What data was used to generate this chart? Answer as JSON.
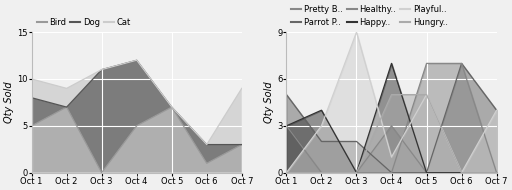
{
  "x": [
    1,
    2,
    3,
    4,
    5,
    6,
    7
  ],
  "x_ticks_major": [
    1,
    3,
    5,
    7
  ],
  "x_ticks_minor": [
    2,
    4,
    6
  ],
  "major_labels": [
    "Oct 1",
    "Oct 3",
    "Oct 5",
    "Oct 7"
  ],
  "minor_labels": [
    "Oct 2",
    "Oct 4",
    "Oct 6"
  ],
  "left": {
    "Bird": [
      5,
      7,
      0,
      5,
      7,
      1,
      3
    ],
    "Dog": [
      3,
      0,
      11,
      7,
      0,
      2,
      0
    ],
    "Cat": [
      2,
      2,
      0,
      0,
      0,
      0,
      6
    ],
    "colors": {
      "Bird": "#999999",
      "Dog": "#555555",
      "Cat": "#cccccc"
    },
    "order": [
      "Bird",
      "Dog",
      "Cat"
    ],
    "ylabel": "Qty Sold",
    "ylim": [
      0,
      15
    ],
    "yticks": [
      0,
      5,
      10,
      15
    ]
  },
  "right": {
    "Pretty B..": [
      3,
      0,
      0,
      3,
      0,
      0,
      0
    ],
    "Parrot P..": [
      5,
      2,
      2,
      0,
      0,
      7,
      4
    ],
    "Healthy..": [
      0,
      0,
      0,
      0,
      7,
      7,
      0
    ],
    "Happy..": [
      3,
      4,
      0,
      7,
      0,
      0,
      0
    ],
    "Playful..": [
      0,
      3,
      9,
      1,
      5,
      0,
      4
    ],
    "Hungry..": [
      0,
      0,
      0,
      5,
      5,
      0,
      0
    ],
    "colors": {
      "Pretty B..": "#888888",
      "Parrot P..": "#666666",
      "Healthy..": "#888888",
      "Happy..": "#333333",
      "Playful..": "#d0d0d0",
      "Hungry..": "#aaaaaa"
    },
    "order": [
      "Pretty B..",
      "Parrot P..",
      "Healthy..",
      "Happy..",
      "Playful..",
      "Hungry.."
    ],
    "ylabel": "Qty Sold",
    "ylim": [
      0,
      9
    ],
    "yticks": [
      0,
      3,
      6,
      9
    ]
  },
  "bg_color": "#f0f0f0",
  "grid_color": "#ffffff",
  "legend_fontsize": 6.0,
  "axis_label_fontsize": 7,
  "tick_fontsize": 6
}
